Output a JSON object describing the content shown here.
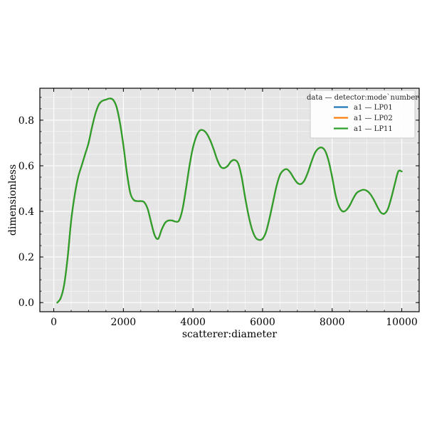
{
  "chart_data": {
    "type": "line",
    "xlabel": "scatterer:diameter",
    "ylabel": "dimensionless",
    "xlim": [
      -400,
      10500
    ],
    "ylim": [
      -0.04,
      0.94
    ],
    "xticks": [
      0,
      2000,
      4000,
      6000,
      8000,
      10000
    ],
    "xtick_labels": [
      "0",
      "2000",
      "4000",
      "6000",
      "8000",
      "10000"
    ],
    "yticks": [
      0.0,
      0.2,
      0.4,
      0.6,
      0.8
    ],
    "ytick_labels": [
      "0.0",
      "0.2",
      "0.4",
      "0.6",
      "0.8"
    ],
    "grid": true,
    "legend": {
      "title": "data — detector:mode`number",
      "placement": "top-right"
    },
    "x": [
      100,
      200,
      300,
      400,
      500,
      600,
      700,
      800,
      900,
      1000,
      1100,
      1200,
      1300,
      1400,
      1500,
      1600,
      1700,
      1800,
      1900,
      2000,
      2100,
      2200,
      2300,
      2400,
      2500,
      2600,
      2700,
      2800,
      2900,
      3000,
      3100,
      3200,
      3300,
      3400,
      3500,
      3600,
      3700,
      3800,
      3900,
      4000,
      4100,
      4200,
      4300,
      4400,
      4500,
      4600,
      4700,
      4800,
      4900,
      5000,
      5100,
      5200,
      5300,
      5400,
      5500,
      5600,
      5700,
      5800,
      5900,
      6000,
      6100,
      6200,
      6300,
      6400,
      6500,
      6600,
      6700,
      6800,
      6900,
      7000,
      7100,
      7200,
      7300,
      7400,
      7500,
      7600,
      7700,
      7800,
      7900,
      8000,
      8100,
      8200,
      8300,
      8400,
      8500,
      8600,
      8700,
      8800,
      8900,
      9000,
      9100,
      9200,
      9300,
      9400,
      9500,
      9600,
      9700,
      9800,
      9900,
      10000
    ],
    "series": [
      {
        "name": "a1 — LP01",
        "color": "#1f77b4",
        "values": [
          0.0,
          0.02,
          0.08,
          0.2,
          0.36,
          0.47,
          0.55,
          0.6,
          0.65,
          0.7,
          0.77,
          0.83,
          0.87,
          0.885,
          0.89,
          0.895,
          0.89,
          0.86,
          0.79,
          0.69,
          0.57,
          0.48,
          0.45,
          0.445,
          0.445,
          0.44,
          0.41,
          0.35,
          0.295,
          0.28,
          0.32,
          0.35,
          0.36,
          0.36,
          0.355,
          0.36,
          0.41,
          0.5,
          0.6,
          0.68,
          0.73,
          0.755,
          0.755,
          0.74,
          0.71,
          0.67,
          0.625,
          0.595,
          0.59,
          0.6,
          0.62,
          0.625,
          0.61,
          0.55,
          0.46,
          0.38,
          0.32,
          0.285,
          0.275,
          0.28,
          0.31,
          0.37,
          0.44,
          0.51,
          0.56,
          0.58,
          0.585,
          0.57,
          0.545,
          0.525,
          0.52,
          0.535,
          0.57,
          0.615,
          0.655,
          0.675,
          0.68,
          0.665,
          0.62,
          0.55,
          0.47,
          0.42,
          0.4,
          0.405,
          0.425,
          0.455,
          0.48,
          0.49,
          0.495,
          0.49,
          0.475,
          0.45,
          0.42,
          0.395,
          0.39,
          0.41,
          0.46,
          0.52,
          0.575,
          0.575
        ]
      },
      {
        "name": "a1 — LP02",
        "color": "#ff7f0e",
        "values": [
          0.0,
          0.02,
          0.08,
          0.2,
          0.36,
          0.47,
          0.55,
          0.6,
          0.65,
          0.7,
          0.77,
          0.83,
          0.87,
          0.885,
          0.89,
          0.895,
          0.89,
          0.86,
          0.79,
          0.69,
          0.57,
          0.48,
          0.45,
          0.445,
          0.445,
          0.44,
          0.41,
          0.35,
          0.295,
          0.28,
          0.32,
          0.35,
          0.36,
          0.36,
          0.355,
          0.36,
          0.41,
          0.5,
          0.6,
          0.68,
          0.73,
          0.755,
          0.755,
          0.74,
          0.71,
          0.67,
          0.625,
          0.595,
          0.59,
          0.6,
          0.62,
          0.625,
          0.61,
          0.55,
          0.46,
          0.38,
          0.32,
          0.285,
          0.275,
          0.28,
          0.31,
          0.37,
          0.44,
          0.51,
          0.56,
          0.58,
          0.585,
          0.57,
          0.545,
          0.525,
          0.52,
          0.535,
          0.57,
          0.615,
          0.655,
          0.675,
          0.68,
          0.665,
          0.62,
          0.55,
          0.47,
          0.42,
          0.4,
          0.405,
          0.425,
          0.455,
          0.48,
          0.49,
          0.495,
          0.49,
          0.475,
          0.45,
          0.42,
          0.395,
          0.39,
          0.41,
          0.46,
          0.52,
          0.575,
          0.575
        ]
      },
      {
        "name": "a1 — LP11",
        "color": "#2ca02c",
        "values": [
          0.0,
          0.02,
          0.08,
          0.2,
          0.36,
          0.47,
          0.55,
          0.6,
          0.65,
          0.7,
          0.77,
          0.83,
          0.87,
          0.885,
          0.89,
          0.895,
          0.89,
          0.86,
          0.79,
          0.69,
          0.57,
          0.48,
          0.45,
          0.445,
          0.445,
          0.44,
          0.41,
          0.35,
          0.295,
          0.28,
          0.32,
          0.35,
          0.36,
          0.36,
          0.355,
          0.36,
          0.41,
          0.5,
          0.6,
          0.68,
          0.73,
          0.755,
          0.755,
          0.74,
          0.71,
          0.67,
          0.625,
          0.595,
          0.59,
          0.6,
          0.62,
          0.625,
          0.61,
          0.55,
          0.46,
          0.38,
          0.32,
          0.285,
          0.275,
          0.28,
          0.31,
          0.37,
          0.44,
          0.51,
          0.56,
          0.58,
          0.585,
          0.57,
          0.545,
          0.525,
          0.52,
          0.535,
          0.57,
          0.615,
          0.655,
          0.675,
          0.68,
          0.665,
          0.62,
          0.55,
          0.47,
          0.42,
          0.4,
          0.405,
          0.425,
          0.455,
          0.48,
          0.49,
          0.495,
          0.49,
          0.475,
          0.45,
          0.42,
          0.395,
          0.39,
          0.41,
          0.46,
          0.52,
          0.575,
          0.575
        ]
      }
    ]
  }
}
